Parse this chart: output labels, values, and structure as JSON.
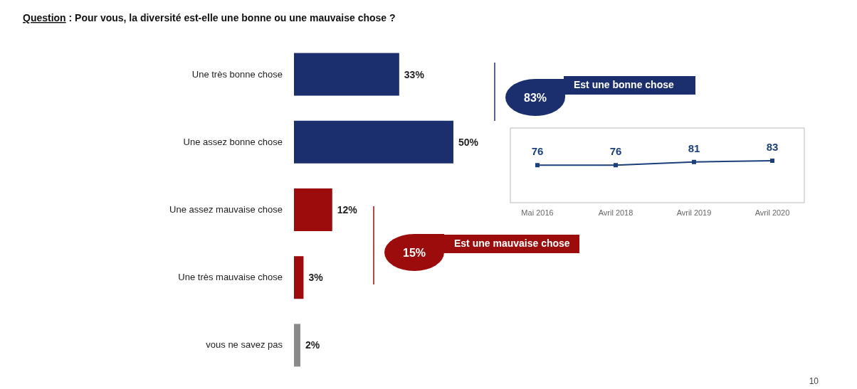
{
  "chart_data": [
    {
      "type": "bar",
      "orientation": "horizontal",
      "title": "Question : Pour vous, la diversité est-elle une bonne ou une mauvaise chose ?",
      "categories": [
        "Une très bonne chose",
        "Une assez bonne chose",
        "Une assez mauvaise chose",
        "Une très mauvaise chose",
        "vous ne savez pas"
      ],
      "values": [
        33,
        50,
        12,
        3,
        2
      ],
      "colors": [
        "#1b2f6e",
        "#1b2f6e",
        "#9c0c0c",
        "#9c0c0c",
        "#8a8a8a"
      ],
      "value_labels": [
        "33%",
        "50%",
        "12%",
        "3%",
        "2%"
      ],
      "annotations": [
        "83%",
        "Est une bonne chose",
        "15%",
        "Est une mauvaise chose",
        "10"
      ]
    },
    {
      "type": "line",
      "categories": [
        "Mai 2016",
        "Avril 2018",
        "Avril 2019",
        "Avril 2020"
      ],
      "values": [
        76,
        76,
        81,
        83
      ],
      "color": "#1b3f7a",
      "marker": "square",
      "data_labels": true
    }
  ]
}
